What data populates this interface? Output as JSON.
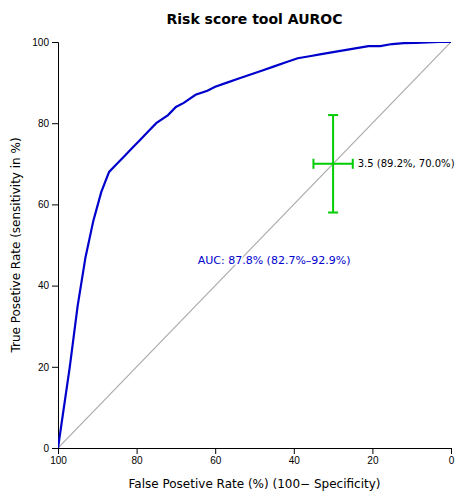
{
  "chart_data": {
    "type": "line",
    "title": "Risk score tool AUROC",
    "x_label": "False Posetive Rate (%) (100− Specificity)",
    "y_label": "True Posetive Rate (sensitivity in %)",
    "series": [
      {
        "color": "#aaaaaa",
        "x": [
          100,
          0
        ],
        "values": [
          0,
          100
        ]
      },
      {
        "color": "#0000cc",
        "x": [
          100,
          97,
          95,
          93,
          91,
          89,
          87,
          85,
          83,
          81,
          79,
          77,
          75,
          72,
          70,
          68,
          65,
          62,
          60,
          57,
          54,
          51,
          48,
          45,
          42,
          39,
          36,
          33,
          30,
          27,
          24,
          21,
          18,
          15,
          12,
          9,
          6,
          3,
          0
        ],
        "values": [
          0,
          20,
          35,
          47,
          56,
          63,
          68,
          70,
          72,
          74,
          76,
          78,
          80,
          82,
          84,
          85,
          87,
          88,
          89,
          90,
          91,
          92,
          93,
          94,
          95,
          96,
          96.5,
          97,
          97.5,
          98,
          98.5,
          99,
          99,
          99.5,
          99.7,
          99.8,
          99.9,
          100,
          100
        ]
      }
    ],
    "cutpoint": {
      "x": 30.0,
      "y": 70.0,
      "x_err_low": 5.0,
      "x_err_high": 5.0,
      "y_err_low": 12.0,
      "y_err_high": 12.0,
      "color": "#00cc00",
      "label": "3.5 (89.2%, 70.0%)"
    },
    "annotations": [
      {
        "text": "AUC: 87.8% (82.7%–92.9%)",
        "x": 45,
        "y": 46,
        "color": "#0000cc"
      }
    ],
    "xlim": [
      100,
      0
    ],
    "ylim": [
      0,
      100
    ],
    "xticks": [
      100,
      80,
      60,
      40,
      20,
      0
    ],
    "yticks": [
      0,
      20,
      40,
      60,
      80,
      100
    ]
  }
}
